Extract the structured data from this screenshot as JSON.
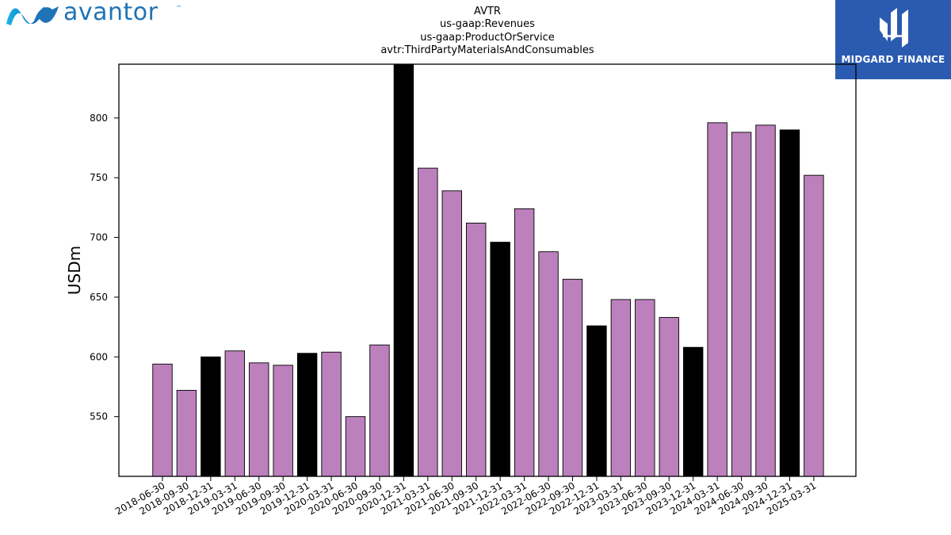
{
  "brand": {
    "company_logo_text": "avantor",
    "company_logo_tm": "™",
    "publisher_logo_text": "MIDGARD FINANCE",
    "company_color": "#1f73b7",
    "publisher_bg": "#2b5bb0"
  },
  "chart_data": {
    "type": "bar",
    "title_lines": [
      "AVTR",
      "us-gaap:Revenues",
      "us-gaap:ProductOrService",
      "avtr:ThirdPartyMaterialsAndConsumables"
    ],
    "xlabel": "",
    "ylabel": "USDm",
    "ylim": [
      500,
      845
    ],
    "yticks": [
      550,
      600,
      650,
      700,
      750,
      800
    ],
    "grid": false,
    "colors": {
      "quarter": "#bc80bd",
      "fiscal_year_end": "#000000"
    },
    "categories": [
      "2018-06-30",
      "2018-09-30",
      "2018-12-31",
      "2019-03-31",
      "2019-06-30",
      "2019-09-30",
      "2019-12-31",
      "2020-03-31",
      "2020-06-30",
      "2020-09-30",
      "2020-12-31",
      "2021-03-31",
      "2021-06-30",
      "2021-09-30",
      "2021-12-31",
      "2022-03-31",
      "2022-06-30",
      "2022-09-30",
      "2022-12-31",
      "2023-03-31",
      "2023-06-30",
      "2023-09-30",
      "2023-12-31",
      "2024-03-31",
      "2024-06-30",
      "2024-09-30",
      "2024-12-31",
      "2025-03-31"
    ],
    "values": [
      594,
      572,
      600,
      605,
      595,
      593,
      603,
      604,
      550,
      610,
      845,
      758,
      739,
      712,
      696,
      724,
      688,
      665,
      626,
      648,
      648,
      633,
      608,
      796,
      788,
      794,
      790,
      752
    ],
    "bar_colors": [
      "quarter",
      "quarter",
      "fiscal_year_end",
      "quarter",
      "quarter",
      "quarter",
      "fiscal_year_end",
      "quarter",
      "quarter",
      "quarter",
      "fiscal_year_end",
      "quarter",
      "quarter",
      "quarter",
      "fiscal_year_end",
      "quarter",
      "quarter",
      "quarter",
      "fiscal_year_end",
      "quarter",
      "quarter",
      "quarter",
      "fiscal_year_end",
      "quarter",
      "quarter",
      "quarter",
      "fiscal_year_end",
      "quarter"
    ]
  }
}
